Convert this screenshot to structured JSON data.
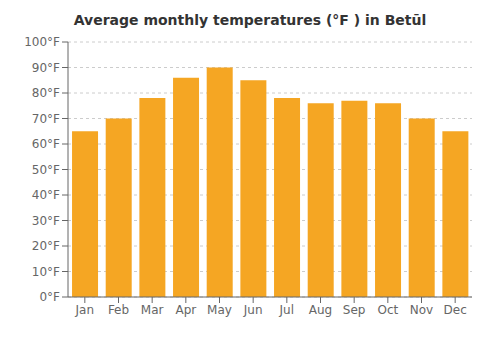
{
  "chart_data": {
    "type": "bar",
    "title": "Average monthly temperatures (°F ) in Betūl",
    "categories": [
      "Jan",
      "Feb",
      "Mar",
      "Apr",
      "May",
      "Jun",
      "Jul",
      "Aug",
      "Sep",
      "Oct",
      "Nov",
      "Dec"
    ],
    "values": [
      65,
      70,
      78,
      86,
      90,
      85,
      78,
      76,
      77,
      76,
      70,
      65
    ],
    "color": "#F5A623",
    "ylim": [
      0,
      100
    ],
    "yticks": [
      {
        "value": 0,
        "label": "0°F"
      },
      {
        "value": 10,
        "label": "10°F"
      },
      {
        "value": 20,
        "label": "20°F"
      },
      {
        "value": 30,
        "label": "30°F"
      },
      {
        "value": 40,
        "label": "40°F"
      },
      {
        "value": 50,
        "label": "50°F"
      },
      {
        "value": 60,
        "label": "60°F"
      },
      {
        "value": 70,
        "label": "70°F"
      },
      {
        "value": 80,
        "label": "80°F"
      },
      {
        "value": 90,
        "label": "90°F"
      },
      {
        "value": 100,
        "label": "100°F"
      }
    ],
    "grid": true
  }
}
